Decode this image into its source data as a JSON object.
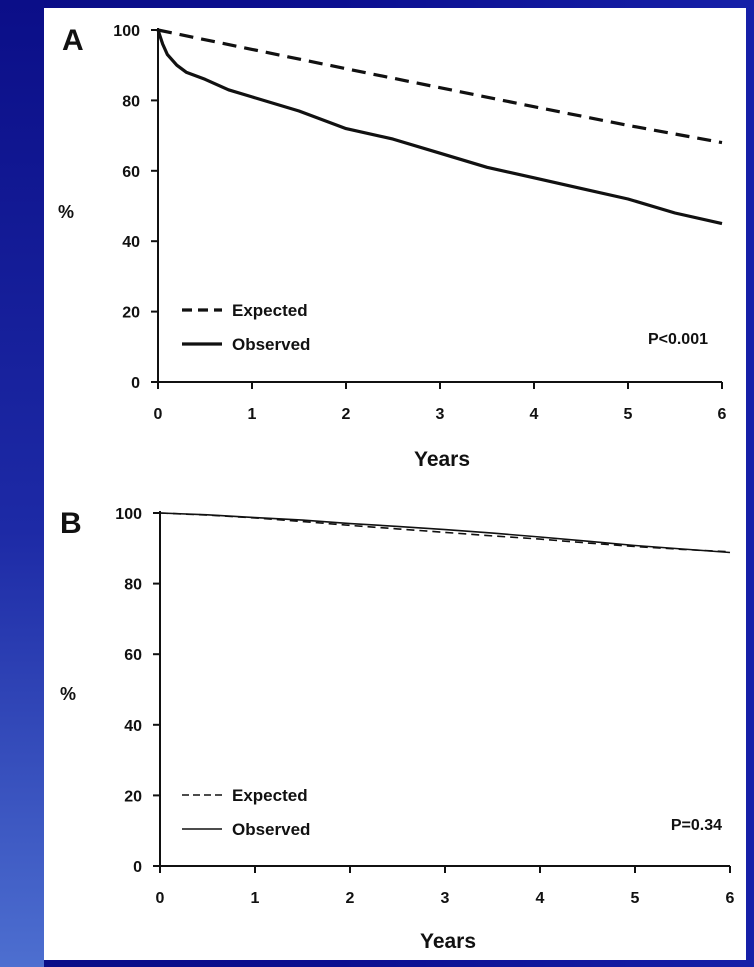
{
  "chart_data": [
    {
      "type": "line",
      "panel_label": "A",
      "xlabel": "Years",
      "ylabel": "%",
      "xlim": [
        0,
        6
      ],
      "ylim": [
        0,
        100
      ],
      "x_ticks": [
        0,
        1,
        2,
        3,
        4,
        5,
        6
      ],
      "y_ticks": [
        0,
        20,
        40,
        60,
        80,
        100
      ],
      "legend_placement": "bottom-left",
      "annotation": "P<0.001",
      "line_weight": "heavy",
      "series": [
        {
          "name": "Expected",
          "style": "dashed",
          "x": [
            0,
            1,
            2,
            3,
            4,
            5,
            6
          ],
          "y": [
            100,
            94.5,
            89,
            83.6,
            78.2,
            72.9,
            68
          ]
        },
        {
          "name": "Observed",
          "style": "solid",
          "x": [
            0,
            0.05,
            0.1,
            0.2,
            0.3,
            0.5,
            0.75,
            1,
            1.5,
            2,
            2.5,
            3,
            3.5,
            4,
            4.5,
            5,
            5.5,
            6
          ],
          "y": [
            100,
            96,
            93,
            90,
            88,
            86,
            83,
            81,
            77,
            72,
            69,
            65,
            61,
            58,
            55,
            52,
            48,
            45
          ]
        }
      ]
    },
    {
      "type": "line",
      "panel_label": "B",
      "xlabel": "Years",
      "ylabel": "%",
      "xlim": [
        0,
        6
      ],
      "ylim": [
        0,
        100
      ],
      "x_ticks": [
        0,
        1,
        2,
        3,
        4,
        5,
        6
      ],
      "y_ticks": [
        0,
        20,
        40,
        60,
        80,
        100
      ],
      "legend_placement": "bottom-left",
      "annotation": "P=0.34",
      "line_weight": "thin",
      "series": [
        {
          "name": "Expected",
          "style": "dashed",
          "x": [
            0,
            0.5,
            1,
            1.5,
            2,
            2.5,
            3,
            3.5,
            4,
            4.5,
            5,
            5.5,
            6
          ],
          "y": [
            100,
            99.4,
            98.6,
            97.6,
            96.5,
            95.5,
            94.5,
            93.5,
            92.6,
            91.5,
            90.5,
            89.7,
            89
          ]
        },
        {
          "name": "Observed",
          "style": "solid",
          "x": [
            0,
            0.5,
            1,
            1.5,
            2,
            2.5,
            3,
            3.5,
            4,
            4.5,
            5,
            5.5,
            6
          ],
          "y": [
            100,
            99.5,
            98.7,
            98,
            97,
            96.2,
            95.3,
            94.3,
            93.2,
            92,
            90.8,
            89.8,
            88.8
          ]
        }
      ]
    }
  ]
}
